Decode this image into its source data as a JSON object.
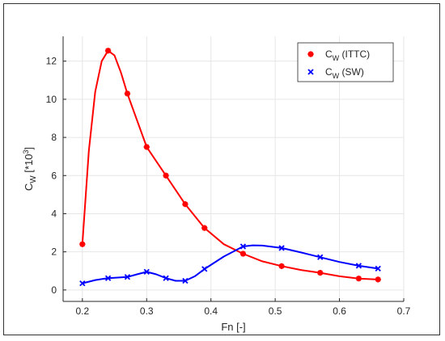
{
  "chart_data": {
    "type": "line",
    "xlabel": "Fn [-]",
    "ylabel": {
      "main": "C",
      "sub": "W",
      "rest": " [*10",
      "sup": "3",
      "end": "]"
    },
    "xlim": [
      0.17,
      0.7
    ],
    "ylim": [
      -0.6,
      13.3
    ],
    "xticks": [
      0.2,
      0.3,
      0.4,
      0.5,
      0.6,
      0.7
    ],
    "xtick_labels": [
      "0.2",
      "0.3",
      "0.4",
      "0.5",
      "0.6",
      "0.7"
    ],
    "yticks": [
      0,
      2,
      4,
      6,
      8,
      10,
      12
    ],
    "ytick_labels": [
      "0",
      "2",
      "4",
      "6",
      "8",
      "10",
      "12"
    ],
    "grid": true,
    "legend": "top-right",
    "series": [
      {
        "name": {
          "main": "C",
          "sub": "W",
          "rest": " (ITTC)"
        },
        "color": "#ff0000",
        "marker": "asterisk",
        "x": [
          0.2,
          0.24,
          0.27,
          0.3,
          0.33,
          0.36,
          0.39,
          0.45,
          0.51,
          0.57,
          0.63,
          0.66
        ],
        "y": [
          2.4,
          12.55,
          10.3,
          7.5,
          6.0,
          4.5,
          3.25,
          1.9,
          1.25,
          0.9,
          0.6,
          0.55
        ],
        "curve_x": [
          0.2,
          0.21,
          0.22,
          0.23,
          0.24,
          0.25,
          0.26,
          0.27,
          0.3,
          0.33,
          0.36,
          0.39,
          0.42,
          0.45,
          0.48,
          0.51,
          0.54,
          0.57,
          0.6,
          0.63,
          0.66
        ],
        "curve_y": [
          2.4,
          7.3,
          10.4,
          12.0,
          12.55,
          12.3,
          11.4,
          10.3,
          7.5,
          6.0,
          4.5,
          3.25,
          2.4,
          1.9,
          1.5,
          1.25,
          1.05,
          0.9,
          0.72,
          0.6,
          0.55
        ]
      },
      {
        "name": {
          "main": "C",
          "sub": "W",
          "rest": " (SW)"
        },
        "color": "#0000ff",
        "marker": "x",
        "x": [
          0.2,
          0.24,
          0.27,
          0.3,
          0.33,
          0.36,
          0.39,
          0.45,
          0.51,
          0.57,
          0.63,
          0.66
        ],
        "y": [
          0.35,
          0.62,
          0.68,
          0.95,
          0.62,
          0.48,
          1.1,
          2.28,
          2.2,
          1.72,
          1.27,
          1.12
        ],
        "curve_x": [
          0.2,
          0.22,
          0.24,
          0.27,
          0.285,
          0.3,
          0.315,
          0.33,
          0.345,
          0.36,
          0.375,
          0.39,
          0.42,
          0.45,
          0.465,
          0.48,
          0.51,
          0.54,
          0.57,
          0.6,
          0.63,
          0.66
        ],
        "curve_y": [
          0.35,
          0.52,
          0.62,
          0.68,
          0.82,
          0.95,
          0.82,
          0.62,
          0.48,
          0.48,
          0.72,
          1.1,
          1.75,
          2.28,
          2.34,
          2.33,
          2.2,
          1.97,
          1.72,
          1.47,
          1.27,
          1.12
        ]
      }
    ]
  }
}
